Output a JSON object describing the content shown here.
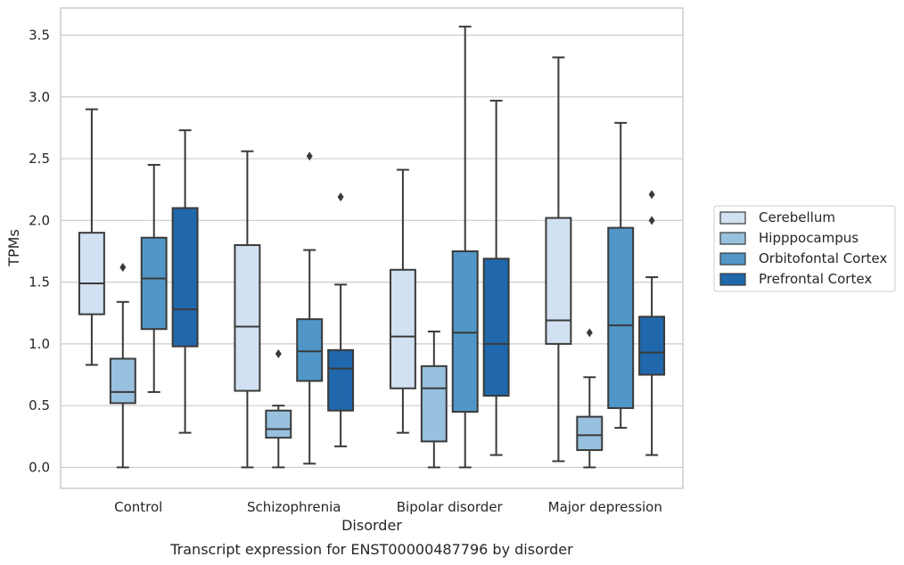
{
  "chart_data": {
    "type": "box",
    "caption": "Transcript expression for ENST00000487796 by disorder",
    "xlabel": "Disorder",
    "ylabel": "TPMs",
    "ylim": [
      -0.17,
      3.72
    ],
    "yticks": [
      "0.0",
      "0.5",
      "1.0",
      "1.5",
      "2.0",
      "2.5",
      "3.0",
      "3.5"
    ],
    "grid": "horizontal",
    "legend_position": "right",
    "categories": [
      "Control",
      "Schizophrenia",
      "Bipolar disorder",
      "Major depression"
    ],
    "series": [
      {
        "name": "Cerebellum",
        "color": "#d1e1f1",
        "boxes": [
          {
            "whislo": 0.83,
            "q1": 1.24,
            "med": 1.49,
            "q3": 1.9,
            "whishi": 2.9,
            "fliers": []
          },
          {
            "whislo": 0.0,
            "q1": 0.62,
            "med": 1.14,
            "q3": 1.8,
            "whishi": 2.56,
            "fliers": []
          },
          {
            "whislo": 0.28,
            "q1": 0.64,
            "med": 1.06,
            "q3": 1.6,
            "whishi": 2.41,
            "fliers": []
          },
          {
            "whislo": 0.05,
            "q1": 1.0,
            "med": 1.19,
            "q3": 2.02,
            "whishi": 3.32,
            "fliers": []
          }
        ]
      },
      {
        "name": "Hipppocampus",
        "color": "#97c1de",
        "boxes": [
          {
            "whislo": 0.0,
            "q1": 0.52,
            "med": 0.61,
            "q3": 0.88,
            "whishi": 1.34,
            "fliers": [
              1.62
            ]
          },
          {
            "whislo": 0.0,
            "q1": 0.24,
            "med": 0.31,
            "q3": 0.46,
            "whishi": 0.5,
            "fliers": [
              0.92
            ]
          },
          {
            "whislo": 0.0,
            "q1": 0.21,
            "med": 0.64,
            "q3": 0.82,
            "whishi": 1.1,
            "fliers": []
          },
          {
            "whislo": 0.0,
            "q1": 0.14,
            "med": 0.26,
            "q3": 0.41,
            "whishi": 0.73,
            "fliers": [
              1.09
            ]
          }
        ]
      },
      {
        "name": "Orbitofontal Cortex",
        "color": "#5097c7",
        "boxes": [
          {
            "whislo": 0.61,
            "q1": 1.12,
            "med": 1.53,
            "q3": 1.86,
            "whishi": 2.45,
            "fliers": []
          },
          {
            "whislo": 0.03,
            "q1": 0.7,
            "med": 0.94,
            "q3": 1.2,
            "whishi": 1.76,
            "fliers": [
              2.52
            ]
          },
          {
            "whislo": 0.0,
            "q1": 0.45,
            "med": 1.09,
            "q3": 1.75,
            "whishi": 3.57,
            "fliers": []
          },
          {
            "whislo": 0.32,
            "q1": 0.48,
            "med": 1.15,
            "q3": 1.94,
            "whishi": 2.79,
            "fliers": []
          }
        ]
      },
      {
        "name": "Prefrontal Cortex",
        "color": "#2068ab",
        "boxes": [
          {
            "whislo": 0.28,
            "q1": 0.98,
            "med": 1.28,
            "q3": 2.1,
            "whishi": 2.73,
            "fliers": []
          },
          {
            "whislo": 0.17,
            "q1": 0.46,
            "med": 0.8,
            "q3": 0.95,
            "whishi": 1.48,
            "fliers": [
              2.19
            ]
          },
          {
            "whislo": 0.1,
            "q1": 0.58,
            "med": 1.0,
            "q3": 1.69,
            "whishi": 2.97,
            "fliers": []
          },
          {
            "whislo": 0.1,
            "q1": 0.75,
            "med": 0.93,
            "q3": 1.22,
            "whishi": 1.54,
            "fliers": [
              2.0,
              2.21
            ]
          }
        ]
      }
    ]
  }
}
